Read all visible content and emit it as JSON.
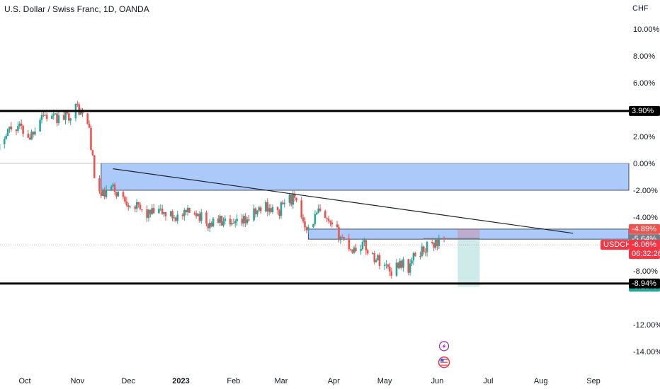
{
  "header": {
    "title": "U.S. Dollar / Swiss Franc, 1D, OANDA",
    "currency": "CHF"
  },
  "chart_data": {
    "type": "candlestick",
    "symbol": "USDCHF",
    "scale": "percent",
    "ylim": [
      -15,
      11
    ],
    "y_ticks": [
      "10.00%",
      "8.00%",
      "6.00%",
      "2.00%",
      "0.00%",
      "-2.00%",
      "-4.00%",
      "-8.00%",
      "-12.00%",
      "-14.00%"
    ],
    "x_ticks": [
      "Oct",
      "Nov",
      "Dec",
      "2023",
      "Feb",
      "Mar",
      "Apr",
      "May",
      "Jun",
      "Jul",
      "Aug",
      "Sep"
    ],
    "x_tick_dates": [
      "2022-10-01",
      "2022-11-01",
      "2022-12-01",
      "2023-01-01",
      "2023-02-01",
      "2023-03-01",
      "2023-04-01",
      "2023-05-01",
      "2023-06-01",
      "2023-07-01",
      "2023-08-01",
      "2023-09-01"
    ],
    "date_range": [
      "2022-09-13",
      "2023-09-30"
    ],
    "colors": {
      "up": "#26a69a",
      "down": "#ef5350",
      "zone": "#8fb8f7",
      "zone_border": "#1e2a44",
      "target": "#26a69a",
      "stop": "#ef5350"
    },
    "candle_path": [
      [
        "2022-09-13",
        0.0
      ],
      [
        "2022-09-20",
        2.5
      ],
      [
        "2022-09-27",
        2.8
      ],
      [
        "2022-10-04",
        2.0
      ],
      [
        "2022-10-11",
        3.7
      ],
      [
        "2022-10-18",
        3.3
      ],
      [
        "2022-10-25",
        3.4
      ],
      [
        "2022-11-01",
        4.2
      ],
      [
        "2022-11-04",
        3.6
      ],
      [
        "2022-11-08",
        2.6
      ],
      [
        "2022-11-11",
        -1.0
      ],
      [
        "2022-11-15",
        -2.5
      ],
      [
        "2022-11-21",
        -1.8
      ],
      [
        "2022-11-28",
        -2.6
      ],
      [
        "2022-12-05",
        -3.2
      ],
      [
        "2022-12-12",
        -3.8
      ],
      [
        "2022-12-19",
        -3.6
      ],
      [
        "2022-12-26",
        -3.9
      ],
      [
        "2023-01-02",
        -4.0
      ],
      [
        "2023-01-09",
        -3.4
      ],
      [
        "2023-01-16",
        -4.6
      ],
      [
        "2023-01-23",
        -4.2
      ],
      [
        "2023-01-30",
        -4.8
      ],
      [
        "2023-02-06",
        -4.4
      ],
      [
        "2023-02-13",
        -3.8
      ],
      [
        "2023-02-20",
        -3.1
      ],
      [
        "2023-02-27",
        -3.8
      ],
      [
        "2023-03-03",
        -2.8
      ],
      [
        "2023-03-08",
        -2.6
      ],
      [
        "2023-03-13",
        -3.9
      ],
      [
        "2023-03-17",
        -4.9
      ],
      [
        "2023-03-23",
        -3.6
      ],
      [
        "2023-03-29",
        -4.6
      ],
      [
        "2023-04-05",
        -5.4
      ],
      [
        "2023-04-12",
        -6.4
      ],
      [
        "2023-04-18",
        -6.0
      ],
      [
        "2023-04-25",
        -7.0
      ],
      [
        "2023-05-01",
        -7.5
      ],
      [
        "2023-05-05",
        -8.0
      ],
      [
        "2023-05-10",
        -7.3
      ],
      [
        "2023-05-15",
        -7.8
      ],
      [
        "2023-05-19",
        -6.8
      ],
      [
        "2023-05-26",
        -6.2
      ],
      [
        "2023-06-02",
        -5.8
      ],
      [
        "2023-06-05",
        -6.06
      ]
    ],
    "levels": [
      {
        "name": "resistance",
        "value": 3.9,
        "label": "3.90%"
      },
      {
        "name": "support",
        "value": -8.94,
        "label": "-8.94%"
      }
    ],
    "zones": [
      {
        "name": "upper-zone",
        "from": -2.0,
        "to": 0.0,
        "start": "2022-11-15",
        "end": "2023-09-30"
      },
      {
        "name": "lower-zone",
        "from": -5.64,
        "to": -4.89,
        "start": "2023-03-17",
        "end": "2023-09-30"
      }
    ],
    "trendline": {
      "start": [
        "2022-11-22",
        -0.4
      ],
      "end": [
        "2023-08-20",
        -5.2
      ]
    },
    "position": {
      "start": "2023-06-13",
      "end": "2023-06-26",
      "entry": -5.6,
      "stop": -4.89,
      "target": -9.18
    },
    "events": [
      {
        "name": "lightning-event",
        "date": "2023-06-05",
        "value": -13.6
      },
      {
        "name": "us-flag-event",
        "date": "2023-06-05",
        "value": -14.8
      }
    ],
    "price_labels": [
      {
        "name": "stop-label",
        "text": "-4.89%",
        "value": -4.89,
        "bg": "#ef5350",
        "fg": "#ffffff"
      },
      {
        "name": "zone-label",
        "text": "-5.64%",
        "value": -5.64,
        "bg": "#787b86",
        "fg": "#ffffff"
      },
      {
        "name": "target-label",
        "text": "-9.18%",
        "value": -9.18,
        "bg": "#26a69a",
        "fg": "#ffffff"
      },
      {
        "name": "level-label-resistance",
        "text": "3.90%",
        "value": 3.9,
        "bg": "#000000",
        "fg": "#ffffff"
      },
      {
        "name": "level-label-support",
        "text": "-8.94%",
        "value": -8.94,
        "bg": "#000000",
        "fg": "#ffffff"
      }
    ],
    "current": {
      "symbol": "USDCHF",
      "value": -6.06,
      "label": "-6.06%",
      "countdown": "06:32:26",
      "color": "#f23645"
    }
  }
}
